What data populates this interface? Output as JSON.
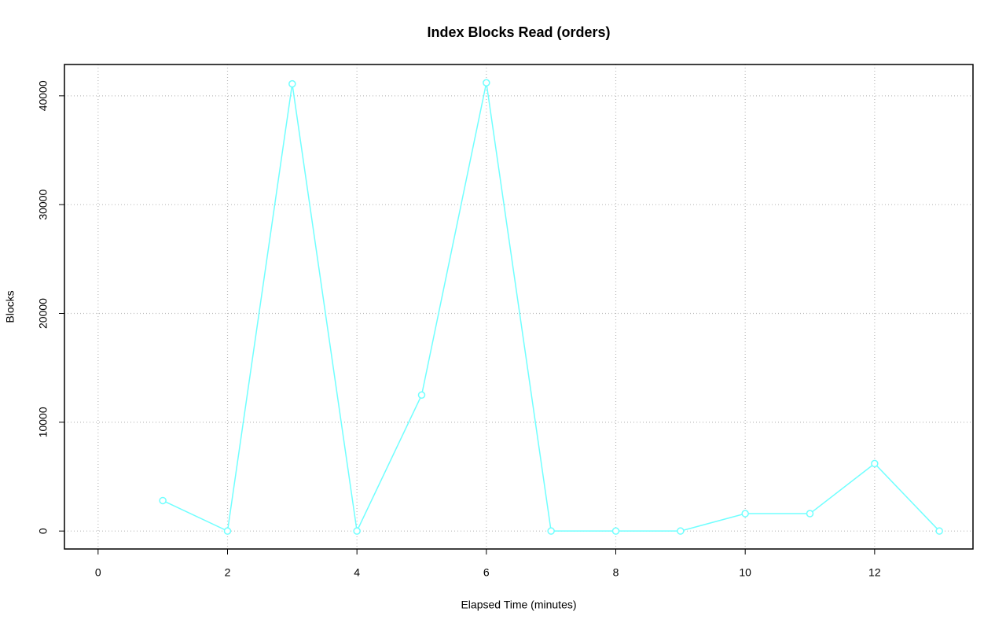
{
  "chart_data": {
    "type": "line",
    "title": "Index Blocks Read (orders)",
    "xlabel": "Elapsed Time (minutes)",
    "ylabel": "Blocks",
    "x": [
      1,
      2,
      3,
      4,
      5,
      6,
      7,
      8,
      9,
      10,
      11,
      12,
      13
    ],
    "series": [
      {
        "name": "orders",
        "color": "#70ffff",
        "values": [
          2800,
          0,
          41100,
          0,
          12500,
          41200,
          0,
          0,
          0,
          1600,
          1600,
          6200,
          0
        ]
      }
    ],
    "xlim": [
      -0.52,
      13.52
    ],
    "xticks": [
      0,
      2,
      4,
      6,
      8,
      10,
      12
    ],
    "ylim": [
      -1650,
      42880
    ],
    "yticks": [
      0,
      10000,
      20000,
      30000,
      40000
    ],
    "grid": true
  }
}
